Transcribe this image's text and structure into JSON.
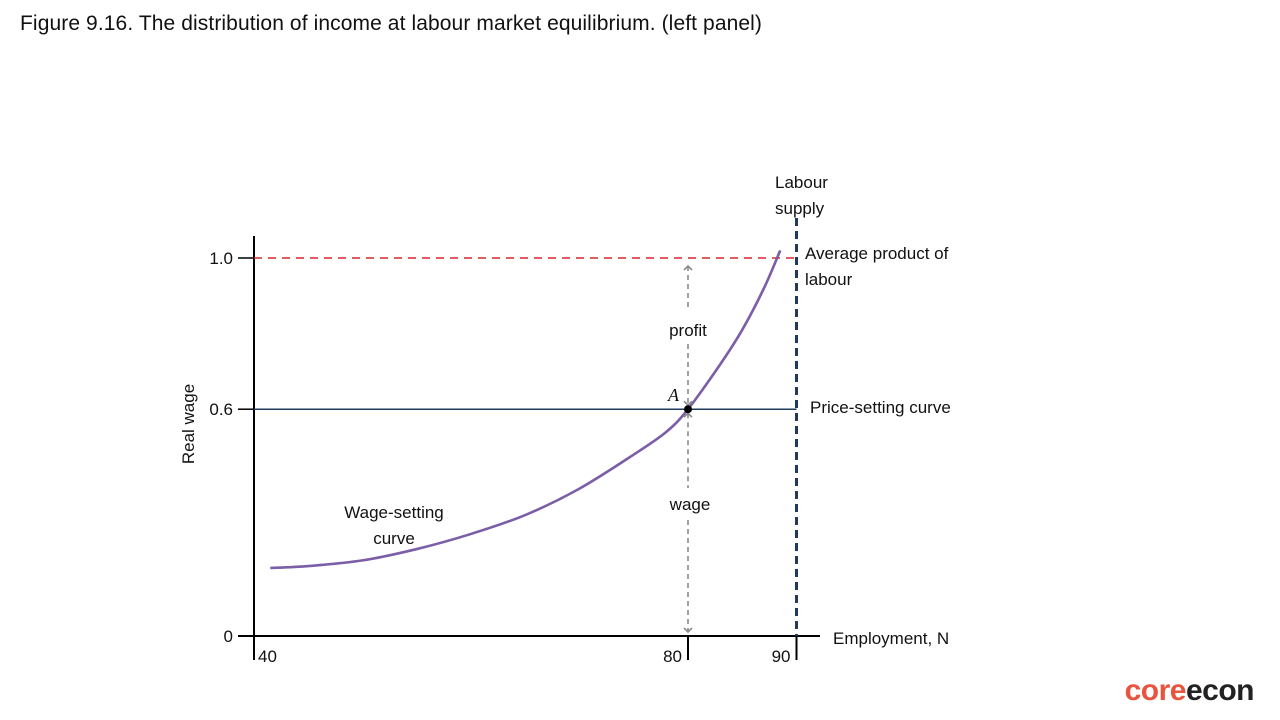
{
  "figure_title": "Figure 9.16. The distribution of income at labour market equilibrium. (left panel)",
  "logo": {
    "part1": "core",
    "part2": "econ"
  },
  "colors": {
    "axis": "#000000",
    "wage_setting": "#7b5ea7",
    "price_setting": "#1f3a5a",
    "average_product": "#d9262b",
    "labour_supply": "#1f3a5a",
    "arrows": "#8a8a8a"
  },
  "chart_data": {
    "type": "line",
    "xlabel": "Employment, N",
    "ylabel": "Real wage",
    "x_ticks": [
      {
        "value": 40,
        "label": "40"
      },
      {
        "value": 80,
        "label": "80"
      },
      {
        "value": 90,
        "label": "90"
      }
    ],
    "y_ticks": [
      {
        "value": 0,
        "label": "0"
      },
      {
        "value": 0.6,
        "label": "0.6"
      },
      {
        "value": 1.0,
        "label": "1.0"
      }
    ],
    "xlim": [
      40,
      92
    ],
    "ylim": [
      0,
      1.05
    ],
    "series": [
      {
        "name": "Wage-setting curve",
        "label_lines": [
          "Wage-setting",
          "curve"
        ],
        "x": [
          41.5,
          45,
          50,
          55,
          60,
          65,
          70,
          75,
          78,
          80,
          83,
          85,
          87,
          88.5
        ],
        "y": [
          0.18,
          0.185,
          0.2,
          0.23,
          0.27,
          0.32,
          0.39,
          0.48,
          0.54,
          0.6,
          0.72,
          0.81,
          0.92,
          1.02
        ]
      },
      {
        "name": "Price-setting curve",
        "label_lines": [
          "Price-setting  curve"
        ],
        "y_value": 0.6
      },
      {
        "name": "Average product of labour",
        "label_lines": [
          "Average  product  of",
          "labour"
        ],
        "y_value": 1.0
      },
      {
        "name": "Labour supply",
        "label_lines": [
          "Labour",
          "supply"
        ],
        "x_value": 90
      }
    ],
    "point": {
      "label": "A",
      "x": 80,
      "y": 0.6
    },
    "annotations": [
      {
        "text": "profit",
        "x": 80,
        "y_from": 0.6,
        "y_to": 1.0
      },
      {
        "text": "wage",
        "x": 80,
        "y_from": 0,
        "y_to": 0.6
      }
    ]
  }
}
